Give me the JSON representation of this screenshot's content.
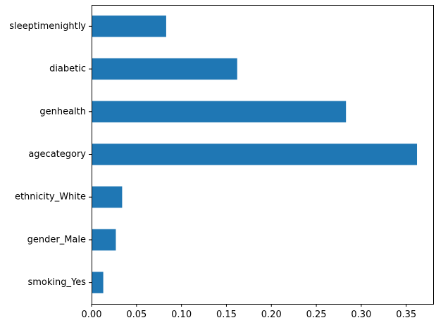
{
  "colors": {
    "bar": "#1f77b4",
    "axis": "#000000",
    "background": "#ffffff"
  },
  "chart_data": {
    "type": "bar",
    "orientation": "horizontal",
    "categories": [
      "sleeptimenightly",
      "diabetic",
      "genhealth",
      "agecategory",
      "ethnicity_White",
      "gender_Male",
      "smoking_Yes"
    ],
    "values": [
      0.083,
      0.162,
      0.283,
      0.362,
      0.034,
      0.027,
      0.013
    ],
    "xticks": [
      "0.00",
      "0.05",
      "0.10",
      "0.15",
      "0.20",
      "0.25",
      "0.30",
      "0.35"
    ],
    "xlim": [
      0,
      0.38
    ],
    "title": "",
    "xlabel": "",
    "ylabel": "",
    "grid": false,
    "legend": "none"
  }
}
